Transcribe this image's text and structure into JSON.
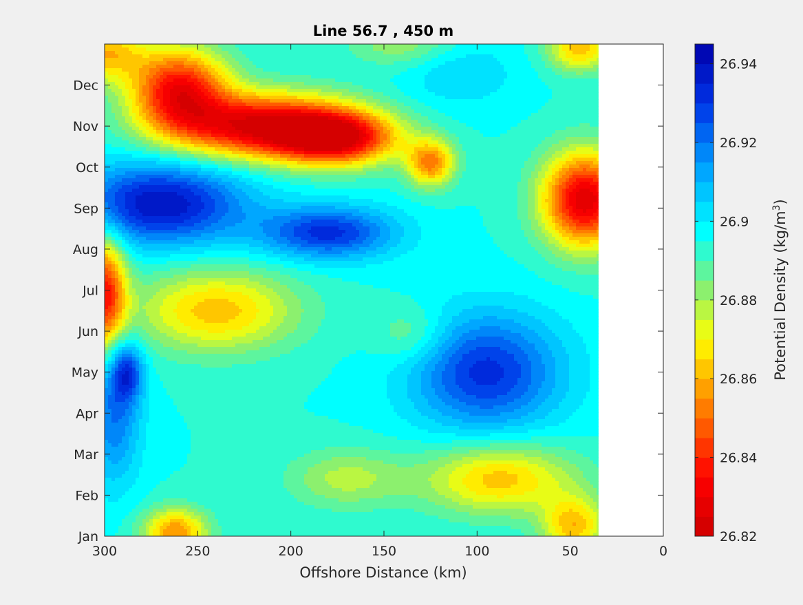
{
  "chart_data": {
    "type": "heatmap",
    "title": "Line 56.7 , 450 m",
    "xlabel": "Offshore Distance (km)",
    "ylabel": "",
    "x_axis": {
      "range": [
        300,
        0
      ],
      "reversed": true,
      "ticks": [
        300,
        250,
        200,
        150,
        100,
        50,
        0
      ],
      "tick_labels": [
        "300",
        "250",
        "200",
        "150",
        "100",
        "50",
        "0"
      ]
    },
    "y_axis": {
      "range": [
        0,
        12
      ],
      "ticks": [
        0,
        1,
        2,
        3,
        4,
        5,
        6,
        7,
        8,
        9,
        10,
        11
      ],
      "tick_labels": [
        "Jan",
        "Feb",
        "Mar",
        "Apr",
        "May",
        "Jun",
        "Jul",
        "Aug",
        "Sep",
        "Oct",
        "Nov",
        "Dec"
      ]
    },
    "data_extent_km": [
      300,
      35
    ],
    "colorbar": {
      "label_prefix": "Potential Density (kg/m",
      "label_exp": "3",
      "label_suffix": ")",
      "min": 26.82,
      "max": 26.945,
      "step": 0.005,
      "ticks": [
        26.82,
        26.84,
        26.86,
        26.88,
        26.9,
        26.92,
        26.94
      ],
      "tick_labels": [
        "26.82",
        "26.84",
        "26.86",
        "26.88",
        "26.9",
        "26.92",
        "26.94"
      ]
    },
    "features": [
      {
        "x": 215,
        "m": 10.0,
        "v": 26.826,
        "sx": 34,
        "sm": 0.55
      },
      {
        "x": 260,
        "m": 10.9,
        "v": 26.835,
        "sx": 18,
        "sm": 0.7
      },
      {
        "x": 175,
        "m": 9.7,
        "v": 26.835,
        "sx": 22,
        "sm": 0.45
      },
      {
        "x": 42,
        "m": 8.2,
        "v": 26.826,
        "sx": 16,
        "sm": 0.8
      },
      {
        "x": 125,
        "m": 9.1,
        "v": 26.853,
        "sx": 9,
        "sm": 0.4
      },
      {
        "x": 300,
        "m": 5.9,
        "v": 26.838,
        "sx": 8,
        "sm": 1.0
      },
      {
        "x": 262,
        "m": 0.1,
        "v": 26.855,
        "sx": 12,
        "sm": 0.4
      },
      {
        "x": 240,
        "m": 5.5,
        "v": 26.862,
        "sx": 30,
        "sm": 0.7
      },
      {
        "x": 88,
        "m": 1.4,
        "v": 26.862,
        "sx": 28,
        "sm": 0.6
      },
      {
        "x": 48,
        "m": 0.25,
        "v": 26.862,
        "sx": 12,
        "sm": 0.5
      },
      {
        "x": 45,
        "m": 11.9,
        "v": 26.862,
        "sx": 12,
        "sm": 0.4
      },
      {
        "x": 300,
        "m": 11.8,
        "v": 26.862,
        "sx": 15,
        "sm": 0.5
      },
      {
        "x": 270,
        "m": 8.1,
        "v": 26.94,
        "sx": 32,
        "sm": 0.7
      },
      {
        "x": 180,
        "m": 7.4,
        "v": 26.932,
        "sx": 25,
        "sm": 0.45
      },
      {
        "x": 95,
        "m": 4.0,
        "v": 26.932,
        "sx": 28,
        "sm": 1.0
      },
      {
        "x": 295,
        "m": 3.0,
        "v": 26.92,
        "sx": 10,
        "sm": 1.2
      },
      {
        "x": 288,
        "m": 4.0,
        "v": 26.925,
        "sx": 6,
        "sm": 0.5
      },
      {
        "x": 110,
        "m": 11.3,
        "v": 26.905,
        "sx": 22,
        "sm": 0.6
      },
      {
        "x": 170,
        "m": 1.4,
        "v": 26.878,
        "sx": 22,
        "sm": 0.5
      },
      {
        "x": 135,
        "m": 4.9,
        "v": 26.882,
        "sx": 14,
        "sm": 0.5
      },
      {
        "x": 140,
        "m": 12.0,
        "v": 26.88,
        "sx": 20,
        "sm": 0.4
      }
    ]
  }
}
